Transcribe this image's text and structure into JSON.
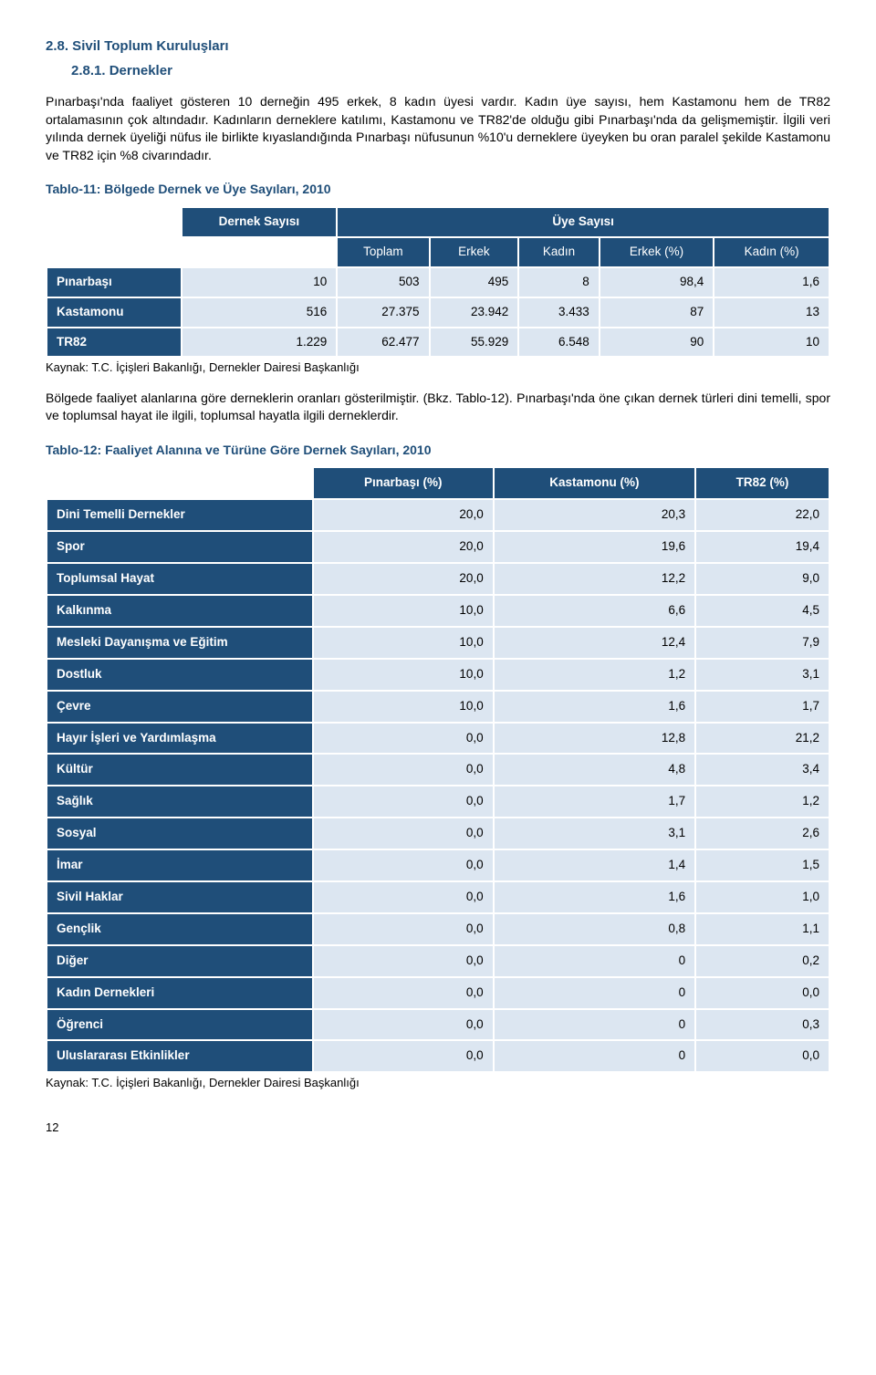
{
  "headings": {
    "h1": "2.8. Sivil Toplum Kuruluşları",
    "h2": "2.8.1. Dernekler"
  },
  "paragraphs": {
    "p1": "Pınarbaşı'nda faaliyet gösteren 10 derneğin 495 erkek, 8 kadın üyesi vardır. Kadın üye sayısı, hem Kastamonu hem de TR82 ortalamasının çok altındadır. Kadınların derneklere katılımı, Kastamonu ve TR82'de olduğu gibi Pınarbaşı'nda da gelişmemiştir. İlgili veri yılında dernek üyeliği nüfus ile birlikte kıyaslandığında Pınarbaşı nüfusunun %10'u derneklere üyeyken bu oran paralel şekilde Kastamonu ve TR82 için %8 civarındadır.",
    "p2": "Bölgede faaliyet alanlarına göre derneklerin oranları gösterilmiştir. (Bkz. Tablo-12). Pınarbaşı'nda öne çıkan dernek türleri dini temelli, spor ve toplumsal hayat ile ilgili, toplumsal hayatla ilgili derneklerdir."
  },
  "table11": {
    "title": "Tablo-11: Bölgede Dernek ve Üye Sayıları, 2010",
    "head_group1": "Dernek Sayısı",
    "head_group2": "Üye Sayısı",
    "cols": {
      "c1": "Toplam",
      "c2": "Erkek",
      "c3": "Kadın",
      "c4": "Erkek (%)",
      "c5": "Kadın (%)"
    },
    "rows": [
      {
        "label": "Pınarbaşı",
        "v": [
          "10",
          "503",
          "495",
          "8",
          "98,4",
          "1,6"
        ]
      },
      {
        "label": "Kastamonu",
        "v": [
          "516",
          "27.375",
          "23.942",
          "3.433",
          "87",
          "13"
        ]
      },
      {
        "label": "TR82",
        "v": [
          "1.229",
          "62.477",
          "55.929",
          "6.548",
          "90",
          "10"
        ]
      }
    ],
    "source": "Kaynak: T.C. İçişleri Bakanlığı, Dernekler Dairesi Başkanlığı"
  },
  "table12": {
    "title": "Tablo-12: Faaliyet Alanına ve Türüne Göre Dernek Sayıları, 2010",
    "cols": {
      "c1": "Pınarbaşı (%)",
      "c2": "Kastamonu (%)",
      "c3": "TR82 (%)"
    },
    "rows": [
      {
        "label": "Dini Temelli Dernekler",
        "v": [
          "20,0",
          "20,3",
          "22,0"
        ]
      },
      {
        "label": "Spor",
        "v": [
          "20,0",
          "19,6",
          "19,4"
        ]
      },
      {
        "label": "Toplumsal Hayat",
        "v": [
          "20,0",
          "12,2",
          "9,0"
        ]
      },
      {
        "label": "Kalkınma",
        "v": [
          "10,0",
          "6,6",
          "4,5"
        ]
      },
      {
        "label": "Mesleki Dayanışma ve Eğitim",
        "v": [
          "10,0",
          "12,4",
          "7,9"
        ]
      },
      {
        "label": "Dostluk",
        "v": [
          "10,0",
          "1,2",
          "3,1"
        ]
      },
      {
        "label": "Çevre",
        "v": [
          "10,0",
          "1,6",
          "1,7"
        ]
      },
      {
        "label": "Hayır İşleri ve Yardımlaşma",
        "v": [
          "0,0",
          "12,8",
          "21,2"
        ]
      },
      {
        "label": "Kültür",
        "v": [
          "0,0",
          "4,8",
          "3,4"
        ]
      },
      {
        "label": "Sağlık",
        "v": [
          "0,0",
          "1,7",
          "1,2"
        ]
      },
      {
        "label": "Sosyal",
        "v": [
          "0,0",
          "3,1",
          "2,6"
        ]
      },
      {
        "label": "İmar",
        "v": [
          "0,0",
          "1,4",
          "1,5"
        ]
      },
      {
        "label": "Sivil Haklar",
        "v": [
          "0,0",
          "1,6",
          "1,0"
        ]
      },
      {
        "label": "Gençlik",
        "v": [
          "0,0",
          "0,8",
          "1,1"
        ]
      },
      {
        "label": "Diğer",
        "v": [
          "0,0",
          "0",
          "0,2"
        ]
      },
      {
        "label": "Kadın Dernekleri",
        "v": [
          "0,0",
          "0",
          "0,0"
        ]
      },
      {
        "label": "Öğrenci",
        "v": [
          "0,0",
          "0",
          "0,3"
        ]
      },
      {
        "label": "Uluslararası Etkinlikler",
        "v": [
          "0,0",
          "0",
          "0,0"
        ]
      }
    ],
    "source": "Kaynak: T.C. İçişleri Bakanlığı, Dernekler Dairesi Başkanlığı"
  },
  "page_number": "12",
  "colors": {
    "header_bg": "#1f4e79",
    "cell_bg": "#dce6f1",
    "title_color": "#1f4e79"
  }
}
